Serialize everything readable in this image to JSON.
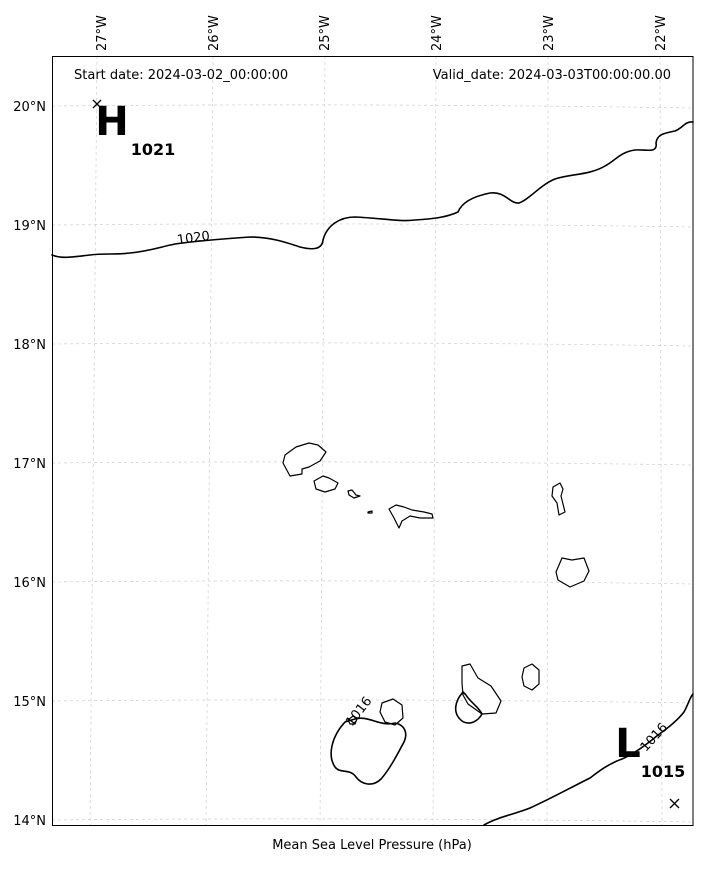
{
  "header": {
    "start_date": "Start date: 2024-03-02_00:00:00",
    "valid_date": "Valid_date: 2024-03-03T00:00:00.00"
  },
  "axes": {
    "xlabel": "Mean Sea Level Pressure (hPa)",
    "lon_ticks": [
      "27°W",
      "26°W",
      "25°W",
      "24°W",
      "23°W",
      "22°W"
    ],
    "lat_ticks": [
      "20°N",
      "19°N",
      "18°N",
      "17°N",
      "16°N",
      "15°N",
      "14°N"
    ],
    "grid": true
  },
  "isobars": [
    {
      "value": 1020,
      "label": "1020"
    },
    {
      "value": 1016,
      "label": "1016"
    },
    {
      "value": 1016,
      "label": "1016"
    }
  ],
  "pressure_centers": [
    {
      "type": "H",
      "letter": "H",
      "value": "1021"
    },
    {
      "type": "L",
      "letter": "L",
      "value": "1015"
    }
  ],
  "colors": {
    "line": "#000000",
    "grid": "#cfcfcf",
    "background": "#ffffff"
  }
}
